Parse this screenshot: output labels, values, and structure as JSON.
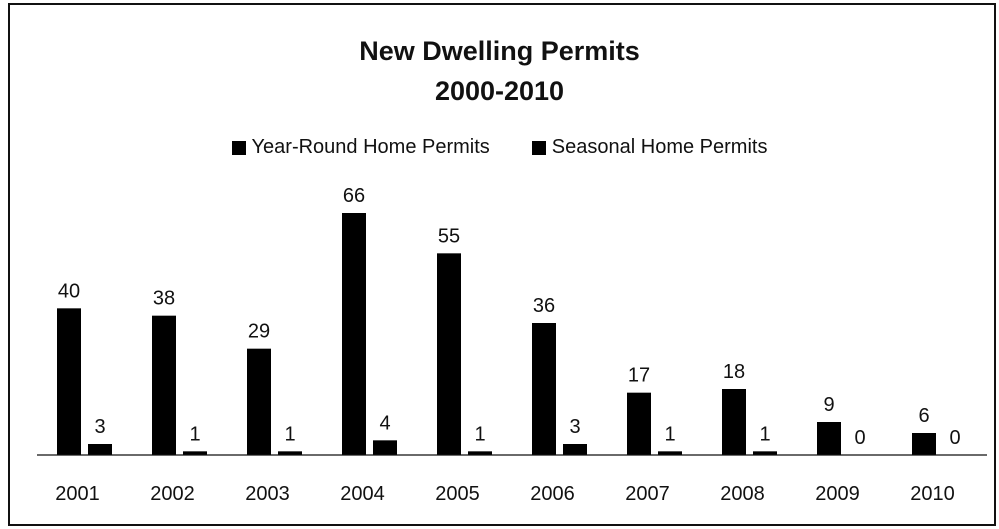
{
  "chart_data": {
    "type": "bar",
    "title": [
      "New Dwelling Permits",
      "2000-2010"
    ],
    "categories": [
      "2001",
      "2002",
      "2003",
      "2004",
      "2005",
      "2006",
      "2007",
      "2008",
      "2009",
      "2010"
    ],
    "series": [
      {
        "name": "Year-Round Home Permits",
        "values": [
          40,
          38,
          29,
          66,
          55,
          36,
          17,
          18,
          9,
          6
        ],
        "color": "#000000"
      },
      {
        "name": "Seasonal Home Permits",
        "values": [
          3,
          1,
          1,
          4,
          1,
          3,
          1,
          1,
          0,
          0
        ],
        "color": "#000000"
      }
    ],
    "ylim": [
      0,
      66
    ],
    "legend_position": "top",
    "grid": false,
    "data_labels": true
  }
}
